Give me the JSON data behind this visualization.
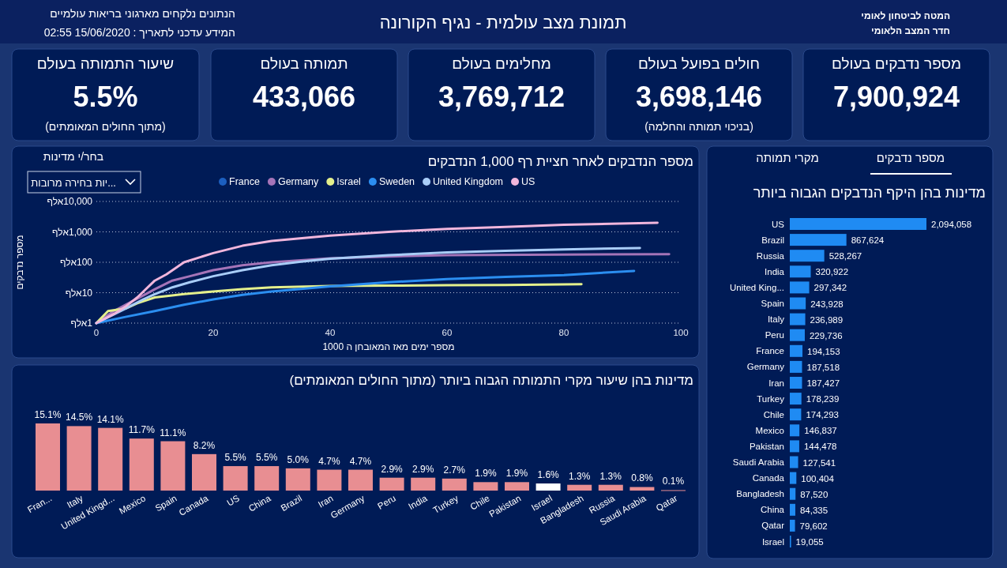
{
  "chart_data": [
    {
      "type": "other",
      "title": "תמונת מצב עולמית - נגיף הקורונה",
      "annotations": [
        "הנתונים נלקחים מארגוני בריאות עולמיים",
        "המידע עדכני לתאריך : 15/06/2020 02:55",
        "המטה לביטחון לאומי",
        "חדר המצב הלאומי"
      ]
    },
    {
      "type": "other",
      "title": "מספר נדבקים בעולם",
      "annotations": [
        "7,900,924"
      ]
    },
    {
      "type": "other",
      "title": "חולים בפועל בעולם",
      "annotations": [
        "3,698,146",
        "(בניכוי תמותה והחלמה)"
      ]
    },
    {
      "type": "other",
      "title": "מחלימים בעולם",
      "annotations": [
        "3,769,712"
      ]
    },
    {
      "type": "other",
      "title": "תמותה בעולם",
      "annotations": [
        "433,066"
      ]
    },
    {
      "type": "other",
      "title": "שיעור התמותה בעולם",
      "annotations": [
        "5.5%",
        "(מתוך החולים המאומתים)"
      ]
    },
    {
      "type": "bar",
      "orientation": "horizontal",
      "title": "מדינות בהן היקף הנדבקים הגבוה ביותר",
      "annotations": [
        "מספר נדבקים",
        "מקרי תמותה"
      ],
      "color": "#1f8bf3",
      "categories": [
        "US",
        "Brazil",
        "Russia",
        "India",
        "United King...",
        "Spain",
        "Italy",
        "Peru",
        "France",
        "Germany",
        "Iran",
        "Turkey",
        "Chile",
        "Mexico",
        "Pakistan",
        "Saudi Arabia",
        "Canada",
        "Bangladesh",
        "China",
        "Qatar",
        "Israel"
      ],
      "values": [
        2094058,
        867624,
        528267,
        320922,
        297342,
        243928,
        236989,
        229736,
        194153,
        187518,
        187427,
        178239,
        174293,
        146837,
        144478,
        127541,
        100404,
        87520,
        84335,
        79602,
        19055
      ],
      "value_labels": [
        "2,094,058",
        "867,624",
        "528,267",
        "320,922",
        "297,342",
        "243,928",
        "236,989",
        "229,736",
        "194,153",
        "187,518",
        "187,427",
        "178,239",
        "174,293",
        "146,837",
        "144,478",
        "127,541",
        "100,404",
        "87,520",
        "84,335",
        "79,602",
        "19,055"
      ]
    },
    {
      "type": "line",
      "title": "מספר הנדבקים לאחר חציית רף 1,000 הנדבקים",
      "xlabel": "מספר ימים מאז המאובחן ה 1000",
      "ylabel": "מספר נדבקים",
      "annotations": [
        "בחר/י מדינות",
        "...יות בחירה מרובות"
      ],
      "log": true,
      "grid": "y",
      "legend": "top",
      "xlim": [
        0,
        100
      ],
      "xticks": [
        0,
        20,
        40,
        60,
        80,
        100
      ],
      "ylim": [
        1,
        10000
      ],
      "yticks": [
        {
          "value": 1,
          "label": "1אלף"
        },
        {
          "value": 10,
          "label": "10אלף"
        },
        {
          "value": 100,
          "label": "100אלף"
        },
        {
          "value": 1000,
          "label": "1,000אלף"
        },
        {
          "value": 10000,
          "label": "10,000אלף"
        }
      ],
      "series": [
        {
          "name": "France",
          "color": "#1c5fbf"
        },
        {
          "name": "Germany",
          "color": "#a574b8",
          "x": [
            0,
            3,
            5,
            8,
            10,
            13,
            16,
            20,
            25,
            30,
            40,
            50,
            60,
            80,
            98
          ],
          "values": [
            1,
            2.5,
            4,
            8,
            13,
            25,
            35,
            55,
            80,
            100,
            135,
            155,
            170,
            180,
            185
          ]
        },
        {
          "name": "Israel",
          "color": "#e4f08c",
          "x": [
            0,
            2,
            5,
            7,
            10,
            15,
            20,
            25,
            30,
            40,
            50,
            60,
            70,
            83
          ],
          "values": [
            1,
            2.5,
            3,
            4.5,
            7,
            9,
            11,
            13,
            15,
            16.5,
            17,
            17.5,
            18,
            19
          ]
        },
        {
          "name": "Sweden",
          "color": "#2b8ef0",
          "x": [
            0,
            5,
            10,
            15,
            20,
            25,
            30,
            40,
            50,
            60,
            70,
            80,
            92
          ],
          "values": [
            1,
            1.6,
            2.5,
            4,
            6,
            8.5,
            11,
            16,
            22,
            28,
            33,
            38,
            52
          ]
        },
        {
          "name": "United Kingdom",
          "color": "#a9cdf7",
          "x": [
            0,
            5,
            8,
            10,
            13,
            16,
            20,
            25,
            30,
            35,
            40,
            50,
            60,
            70,
            80,
            93
          ],
          "values": [
            1,
            3,
            6,
            9,
            15,
            22,
            35,
            55,
            80,
            105,
            130,
            170,
            210,
            240,
            265,
            295
          ]
        },
        {
          "name": "US",
          "color": "#f1b6dc",
          "x": [
            0,
            3,
            5,
            7,
            10,
            12,
            15,
            20,
            25,
            30,
            40,
            50,
            60,
            70,
            80,
            96
          ],
          "values": [
            1,
            2,
            3.5,
            7,
            25,
            40,
            100,
            200,
            350,
            500,
            750,
            1000,
            1250,
            1450,
            1700,
            2000
          ]
        }
      ]
    },
    {
      "type": "bar",
      "title": "מדינות בהן שיעור מקרי התמותה הגבוה ביותר (מתוך החולים המאומתים)",
      "categories": [
        "Fran...",
        "Italy",
        "United Kingd...",
        "Mexico",
        "Spain",
        "Canada",
        "US",
        "China",
        "Brazil",
        "Iran",
        "Germany",
        "Peru",
        "India",
        "Turkey",
        "Chile",
        "Pakistan",
        "Israel",
        "Bangladesh",
        "Russia",
        "Saudi Arabia",
        "Qatar"
      ],
      "values": [
        15.1,
        14.5,
        14.1,
        11.7,
        11.1,
        8.2,
        5.5,
        5.5,
        5.0,
        4.7,
        4.7,
        2.9,
        2.9,
        2.7,
        1.9,
        1.9,
        1.6,
        1.3,
        1.3,
        0.8,
        0.1
      ],
      "value_labels": [
        "15.1%",
        "14.5%",
        "14.1%",
        "11.7%",
        "11.1%",
        "8.2%",
        "5.5%",
        "5.5%",
        "5.0%",
        "4.7%",
        "4.7%",
        "2.9%",
        "2.9%",
        "2.7%",
        "1.9%",
        "1.9%",
        "1.6%",
        "1.3%",
        "1.3%",
        "0.8%",
        "0.1%"
      ],
      "colors": [
        "#e88e92",
        "#e88e92",
        "#e88e92",
        "#e88e92",
        "#e88e92",
        "#e88e92",
        "#e88e92",
        "#e88e92",
        "#e88e92",
        "#e88e92",
        "#e88e92",
        "#e88e92",
        "#e88e92",
        "#e88e92",
        "#e88e92",
        "#e88e92",
        "#ffffff",
        "#e88e92",
        "#e88e92",
        "#e88e92",
        "#e88e92"
      ]
    }
  ]
}
